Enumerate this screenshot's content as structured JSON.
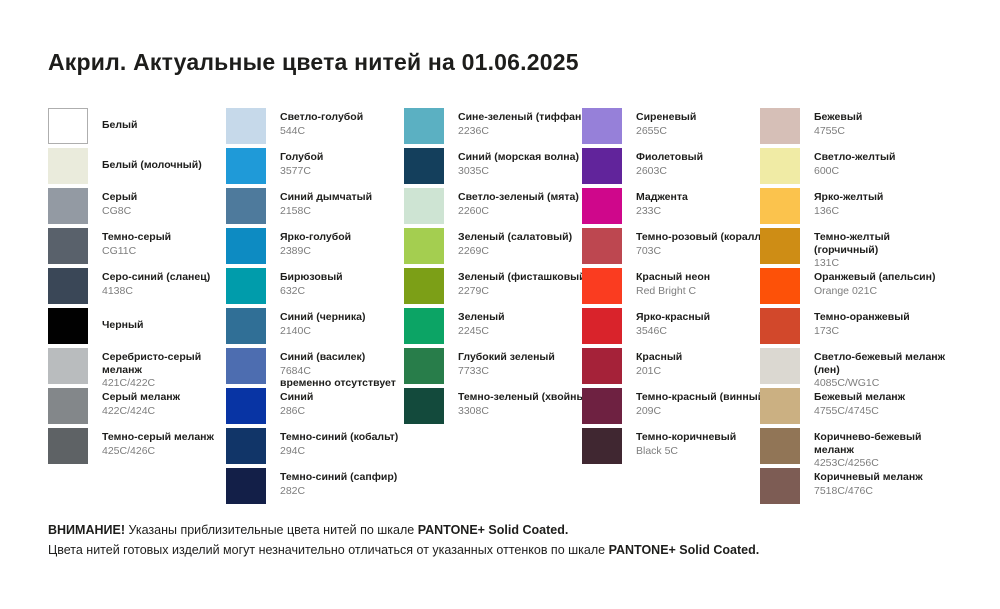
{
  "title": "Акрил. Актуальные цвета нитей на 01.06.2025",
  "footer": {
    "line1_bold": "ВНИМАНИЕ!",
    "line1_text": " Указаны приблизительные цвета нитей по шкале ",
    "pantone_label_1": "PANTONE+ Solid Coated.",
    "line2_text": "Цвета нитей готовых изделий могут незначительно отличаться от указанных оттенков по шкале ",
    "pantone_label_2": "PANTONE+ Solid Coated."
  },
  "palette_columns": [
    {
      "items": [
        {
          "name": "Белый",
          "code": "",
          "color": "#ffffff",
          "border": true
        },
        {
          "name": "Белый (молочный)",
          "code": "",
          "color": "#eaebdc"
        },
        {
          "name": "Серый",
          "code": "CG8C",
          "color": "#939aa3"
        },
        {
          "name": "Темно-серый",
          "code": "CG11C",
          "color": "#59616b"
        },
        {
          "name": "Серо-синий (сланец)",
          "code": "4138C",
          "color": "#3a4757"
        },
        {
          "name": "Черный",
          "code": "",
          "color": "#010101"
        },
        {
          "name": "Серебристо-серый\nмеланж",
          "code": "421C/422C",
          "color": "#b9bcbe"
        },
        {
          "name": "Серый меланж",
          "code": "422C/424C",
          "color": "#83878a"
        },
        {
          "name": "Темно-серый меланж",
          "code": "425C/426C",
          "color": "#5e6265"
        }
      ]
    },
    {
      "items": [
        {
          "name": "Светло-голубой",
          "code": "544C",
          "color": "#c6d9ea"
        },
        {
          "name": "Голубой",
          "code": "3577C",
          "color": "#1f9ad8"
        },
        {
          "name": "Синий дымчатый",
          "code": "2158C",
          "color": "#4e7a9c"
        },
        {
          "name": "Ярко-голубой",
          "code": "2389C",
          "color": "#0d8bc2"
        },
        {
          "name": "Бирюзовый",
          "code": "632C",
          "color": "#009cab"
        },
        {
          "name": "Синий (черника)",
          "code": "2140C",
          "color": "#306f96"
        },
        {
          "name": "Синий (василек)",
          "code": "7684C",
          "color": "#4d6db0",
          "note": "временно отсутствует"
        },
        {
          "name": "Синий",
          "code": "286C",
          "color": "#0834a4"
        },
        {
          "name": "Темно-синий (кобальт)",
          "code": "294C",
          "color": "#113568"
        },
        {
          "name": "Темно-синий (сапфир)",
          "code": "282C",
          "color": "#131f48"
        }
      ]
    },
    {
      "items": [
        {
          "name": "Сине-зеленый (тиффани)",
          "code": "2236C",
          "color": "#5bb0c2"
        },
        {
          "name": "Синий (морская волна)",
          "code": "3035C",
          "color": "#143f5c"
        },
        {
          "name": "Светло-зеленый (мята)",
          "code": "2260C",
          "color": "#cee4d3"
        },
        {
          "name": "Зеленый (салатовый)",
          "code": "2269C",
          "color": "#a4ce50"
        },
        {
          "name": "Зеленый (фисташковый)",
          "code": "2279C",
          "color": "#7c9f17"
        },
        {
          "name": "Зеленый",
          "code": "2245C",
          "color": "#0ca465"
        },
        {
          "name": "Глубокий зеленый",
          "code": "7733C",
          "color": "#287d4a"
        },
        {
          "name": "Темно-зеленый (хвойный)",
          "code": "3308C",
          "color": "#134a3c"
        }
      ]
    },
    {
      "items": [
        {
          "name": "Сиреневый",
          "code": "2655C",
          "color": "#9680d9"
        },
        {
          "name": "Фиолетовый",
          "code": "2603C",
          "color": "#61249b"
        },
        {
          "name": "Маджента",
          "code": "233C",
          "color": "#cf078b"
        },
        {
          "name": "Темно-розовый (коралл)",
          "code": "703C",
          "color": "#bd4750"
        },
        {
          "name": "Красный неон",
          "code": "Red Bright C",
          "color": "#fa3c20"
        },
        {
          "name": "Ярко-красный",
          "code": "3546C",
          "color": "#d9232b"
        },
        {
          "name": "Красный",
          "code": "201C",
          "color": "#a52239"
        },
        {
          "name": "Темно-красный (винный)",
          "code": "209C",
          "color": "#6e2141"
        },
        {
          "name": "Темно-коричневый",
          "code": "Black 5C",
          "color": "#402731"
        }
      ]
    },
    {
      "items": [
        {
          "name": "Бежевый",
          "code": "4755C",
          "color": "#d6bfb7"
        },
        {
          "name": "Светло-желтый",
          "code": "600C",
          "color": "#f0eba5"
        },
        {
          "name": "Ярко-желтый",
          "code": "136C",
          "color": "#fbc34d"
        },
        {
          "name": "Темно-желтый (горчичный)",
          "code": "131C",
          "color": "#ce8d15"
        },
        {
          "name": "Оранжевый (апельсин)",
          "code": "Orange 021C",
          "color": "#fd5108"
        },
        {
          "name": "Темно-оранжевый",
          "code": "173C",
          "color": "#d2482b"
        },
        {
          "name": "Светло-бежевый меланж (лен)",
          "code": "4085C/WG1C",
          "color": "#dbd8d1"
        },
        {
          "name": "Бежевый меланж",
          "code": "4755C/4745C",
          "color": "#cbb082"
        },
        {
          "name": "Коричнево-бежевый меланж",
          "code": "4253C/4256C",
          "color": "#917556"
        },
        {
          "name": "Коричневый меланж",
          "code": "7518C/476C",
          "color": "#7d5c54"
        }
      ]
    }
  ]
}
